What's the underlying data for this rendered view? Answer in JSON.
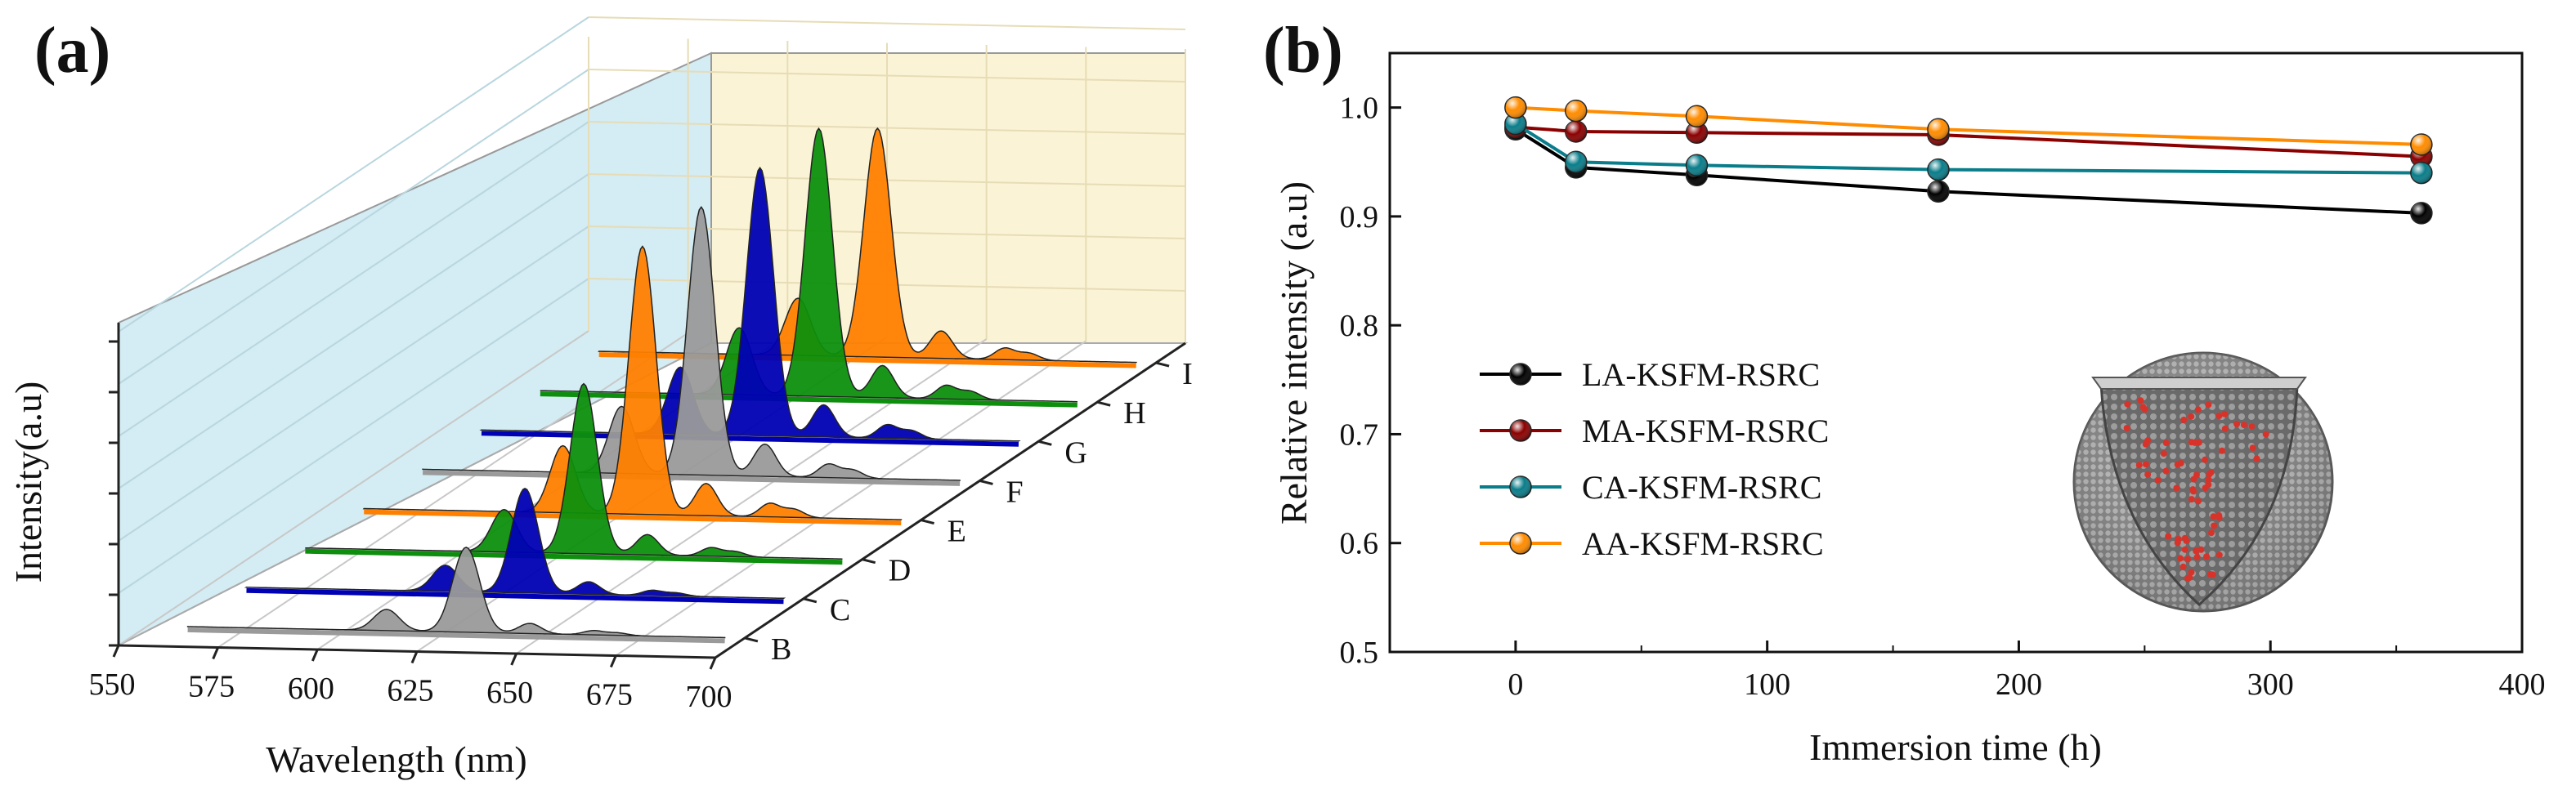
{
  "panel_a_label": "(a)",
  "panel_b_label": "(b)",
  "chart_data": [
    {
      "type": "line",
      "title": "",
      "panel": "(a)",
      "xlabel": "Wavelength (nm)",
      "ylabel": "Intensity(a.u)",
      "xlim": [
        550,
        700
      ],
      "x_ticks": [
        550,
        575,
        600,
        625,
        650,
        675,
        700
      ],
      "depth_labels": [
        "B",
        "C",
        "D",
        "E",
        "F",
        "G",
        "H",
        "I"
      ],
      "peaks_nm": [
        610,
        630,
        647,
        662,
        668
      ],
      "series": [
        {
          "name": "B",
          "color": "#9a9a9a",
          "peak_height": 0.26
        },
        {
          "name": "C",
          "color": "#0000b4",
          "peak_height": 0.32
        },
        {
          "name": "D",
          "color": "#0d8f0d",
          "peak_height": 0.52
        },
        {
          "name": "E",
          "color": "#ff8000",
          "peak_height": 0.82
        },
        {
          "name": "F",
          "color": "#9a9a9a",
          "peak_height": 0.82
        },
        {
          "name": "G",
          "color": "#0000b4",
          "peak_height": 0.82
        },
        {
          "name": "H",
          "color": "#0d8f0d",
          "peak_height": 0.82
        },
        {
          "name": "I",
          "color": "#ff8000",
          "peak_height": 0.7
        }
      ]
    },
    {
      "type": "line",
      "title": "",
      "panel": "(b)",
      "xlabel": "Immersion time (h)",
      "ylabel": "Relative intensity (a.u)",
      "xlim": [
        -50,
        400
      ],
      "ylim": [
        0.5,
        1.05
      ],
      "x_ticks": [
        0,
        100,
        200,
        300,
        400
      ],
      "y_ticks": [
        "0.5",
        "0.6",
        "0.7",
        "0.8",
        "0.9",
        "1.0"
      ],
      "x": [
        0,
        24,
        72,
        168,
        360
      ],
      "series": [
        {
          "name": "LA-KSFM-RSRC",
          "color": "#000000",
          "values": [
            0.98,
            0.945,
            0.938,
            0.923,
            0.903
          ]
        },
        {
          "name": "MA-KSFM-RSRC",
          "color": "#8b0000",
          "values": [
            0.982,
            0.978,
            0.977,
            0.975,
            0.955
          ]
        },
        {
          "name": "CA-KSFM-RSRC",
          "color": "#0a7d8a",
          "values": [
            0.985,
            0.95,
            0.947,
            0.943,
            0.94
          ]
        },
        {
          "name": "AA-KSFM-RSRC",
          "color": "#ff8c00",
          "values": [
            1.0,
            0.997,
            0.992,
            0.98,
            0.966
          ]
        }
      ]
    }
  ]
}
